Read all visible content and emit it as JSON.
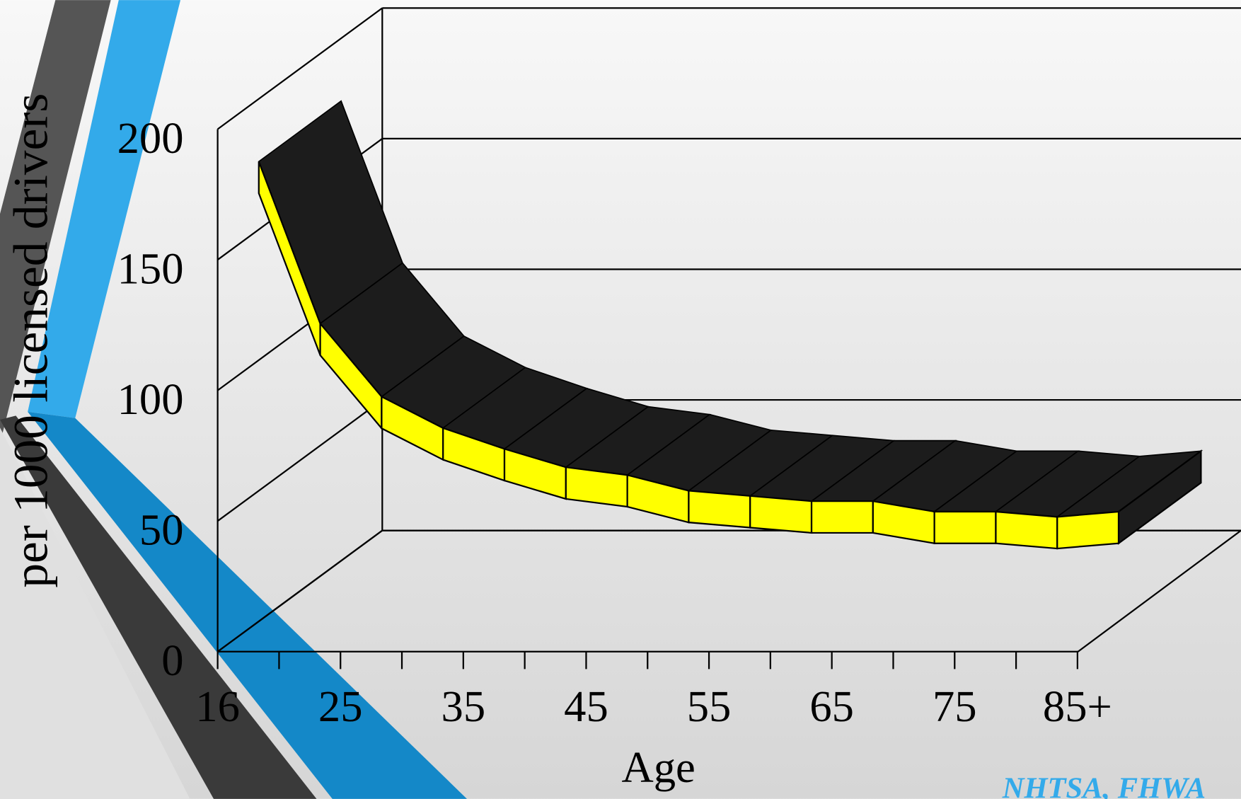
{
  "chart_data": {
    "type": "ribbon",
    "y_label": "per 1000 licensed drivers",
    "x_label": "Age",
    "source": "NHTSA, FHWA",
    "categories": [
      "16",
      null,
      "25",
      null,
      "35",
      null,
      "45",
      null,
      "55",
      null,
      "65",
      null,
      "75",
      null,
      "85+"
    ],
    "values": [
      176,
      114,
      86,
      74,
      66,
      59,
      56,
      50,
      48,
      46,
      46,
      42,
      42,
      40,
      42
    ],
    "color": "#ffff00",
    "top_color": "#1c1c1c",
    "ylim": [
      0,
      200
    ],
    "yticks": [
      0,
      50,
      100,
      150,
      200
    ],
    "grid": true
  }
}
